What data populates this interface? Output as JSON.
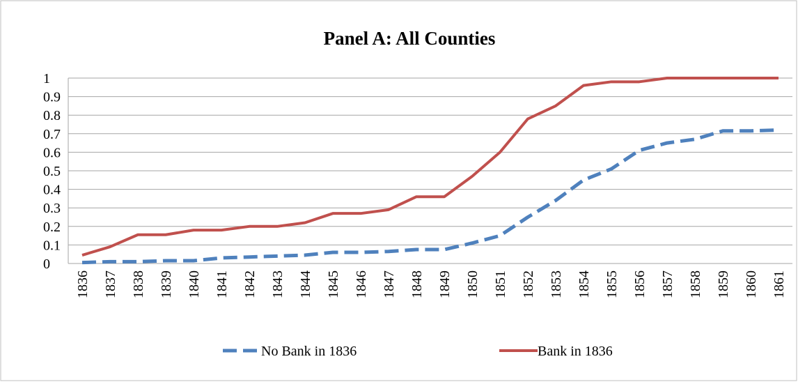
{
  "chart_data": {
    "type": "line",
    "title": "Panel A: All Counties",
    "categories": [
      "1836",
      "1837",
      "1838",
      "1839",
      "1840",
      "1841",
      "1842",
      "1843",
      "1844",
      "1845",
      "1846",
      "1847",
      "1848",
      "1849",
      "1850",
      "1851",
      "1852",
      "1853",
      "1854",
      "1855",
      "1856",
      "1857",
      "1858",
      "1859",
      "1860",
      "1861"
    ],
    "series": [
      {
        "name": "No Bank in 1836",
        "color": "#4f81bd",
        "dashed": true,
        "values": [
          0.005,
          0.01,
          0.01,
          0.015,
          0.015,
          0.03,
          0.035,
          0.04,
          0.045,
          0.06,
          0.06,
          0.065,
          0.075,
          0.075,
          0.11,
          0.15,
          0.25,
          0.34,
          0.45,
          0.51,
          0.61,
          0.65,
          0.67,
          0.715,
          0.715,
          0.72
        ]
      },
      {
        "name": "Bank in 1836",
        "color": "#c0504d",
        "dashed": false,
        "values": [
          0.045,
          0.09,
          0.155,
          0.155,
          0.18,
          0.18,
          0.2,
          0.2,
          0.22,
          0.27,
          0.27,
          0.29,
          0.36,
          0.36,
          0.47,
          0.6,
          0.78,
          0.85,
          0.96,
          0.98,
          0.98,
          1,
          1,
          1,
          1,
          1
        ]
      }
    ],
    "ylim": [
      0,
      1
    ],
    "yticks": [
      0,
      0.1,
      0.2,
      0.3,
      0.4,
      0.5,
      0.6,
      0.7,
      0.8,
      0.9,
      1
    ],
    "grid": true,
    "legend": "bottom"
  }
}
